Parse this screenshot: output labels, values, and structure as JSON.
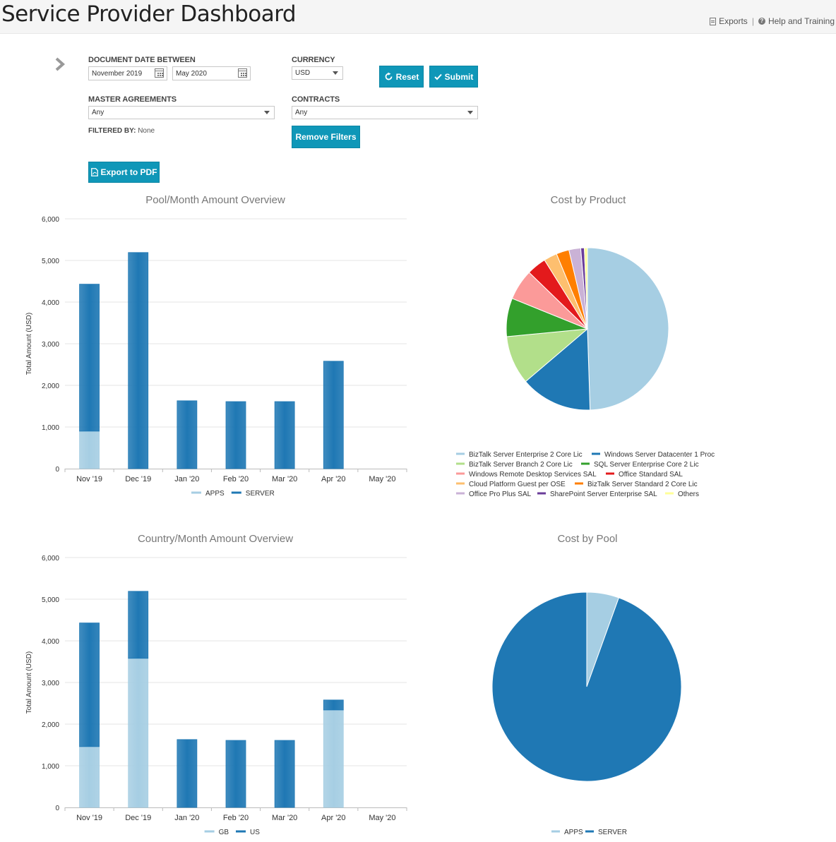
{
  "header": {
    "title": "Service Provider Dashboard",
    "links": {
      "exports": "Exports",
      "help": "Help and Training"
    }
  },
  "filters": {
    "date_label": "DOCUMENT DATE BETWEEN",
    "date_from": "November 2019",
    "date_to": "May 2020",
    "currency_label": "CURRENCY",
    "currency_value": "USD",
    "master_label": "MASTER AGREEMENTS",
    "master_value": "Any",
    "contracts_label": "CONTRACTS",
    "contracts_value": "Any",
    "filtered_by_label": "FILTERED BY:",
    "filtered_by_value": "None"
  },
  "buttons": {
    "reset": "Reset",
    "submit": "Submit",
    "remove_filters": "Remove Filters",
    "export_pdf": "Export to PDF"
  },
  "colors": {
    "light_blue": "#a6cee3",
    "dark_blue": "#1f78b4",
    "accent": "#0f97b8"
  },
  "chart_data": [
    {
      "type": "bar",
      "title": "Pool/Month Amount Overview",
      "ylabel": "Total Amount (USD)",
      "xlabel": "",
      "ylim": [
        0,
        6000
      ],
      "yticks": [
        "0",
        "1,000",
        "2,000",
        "3,000",
        "4,000",
        "5,000",
        "6,000"
      ],
      "categories": [
        "Nov '19",
        "Dec '19",
        "Jan '20",
        "Feb '20",
        "Mar '20",
        "Apr '20",
        "May '20"
      ],
      "stacked": true,
      "series": [
        {
          "name": "APPS",
          "color": "#a6cee3",
          "values": [
            900,
            0,
            0,
            0,
            0,
            0,
            0
          ]
        },
        {
          "name": "SERVER",
          "color": "#1f78b4",
          "values": [
            3530,
            5190,
            1630,
            1610,
            1610,
            2580,
            0
          ]
        }
      ],
      "grid": true,
      "legend": "bottom"
    },
    {
      "type": "pie",
      "title": "Cost by Product",
      "slices": [
        {
          "name": "BizTalk Server Enterprise 2 Core Lic",
          "color": "#a6cee3",
          "value": 48.5
        },
        {
          "name": "Windows Server Datacenter 1 Proc",
          "color": "#1f78b4",
          "value": 14
        },
        {
          "name": "BizTalk Server Branch 2 Core Lic",
          "color": "#b2df8a",
          "value": 9.5
        },
        {
          "name": "SQL Server Enterprise Core 2 Lic",
          "color": "#33a02c",
          "value": 7.5
        },
        {
          "name": "Windows Remote Desktop Services SAL",
          "color": "#fb9a99",
          "value": 6
        },
        {
          "name": "Office Standard SAL",
          "color": "#e31a1c",
          "value": 3.8
        },
        {
          "name": "Cloud Platform Guest per OSE",
          "color": "#fdbf6f",
          "value": 2.6
        },
        {
          "name": "BizTalk Server Standard 2 Core Lic",
          "color": "#ff7f00",
          "value": 2.5
        },
        {
          "name": "Office Pro Plus SAL",
          "color": "#cab2d6",
          "value": 2.3
        },
        {
          "name": "SharePoint Server Enterprise SAL",
          "color": "#6a3d9a",
          "value": 0.7
        },
        {
          "name": "Others",
          "color": "#ffff99",
          "value": 0.6
        }
      ],
      "legend": "bottom"
    },
    {
      "type": "bar",
      "title": "Country/Month Amount Overview",
      "ylabel": "Total Amount (USD)",
      "xlabel": "",
      "ylim": [
        0,
        6000
      ],
      "yticks": [
        "0",
        "1,000",
        "2,000",
        "3,000",
        "4,000",
        "5,000",
        "6,000"
      ],
      "categories": [
        "Nov '19",
        "Dec '19",
        "Jan '20",
        "Feb '20",
        "Mar '20",
        "Apr '20",
        "May '20"
      ],
      "stacked": true,
      "series": [
        {
          "name": "GB",
          "color": "#a6cee3",
          "values": [
            1460,
            3580,
            0,
            0,
            0,
            2340,
            0
          ]
        },
        {
          "name": "US",
          "color": "#1f78b4",
          "values": [
            2970,
            1610,
            1630,
            1610,
            1610,
            240,
            0
          ]
        }
      ],
      "grid": true,
      "legend": "bottom"
    },
    {
      "type": "pie",
      "title": "Cost by Pool",
      "slices": [
        {
          "name": "APPS",
          "color": "#a6cee3",
          "value": 5.5
        },
        {
          "name": "SERVER",
          "color": "#1f78b4",
          "value": 94.5
        }
      ],
      "legend": "bottom"
    }
  ]
}
